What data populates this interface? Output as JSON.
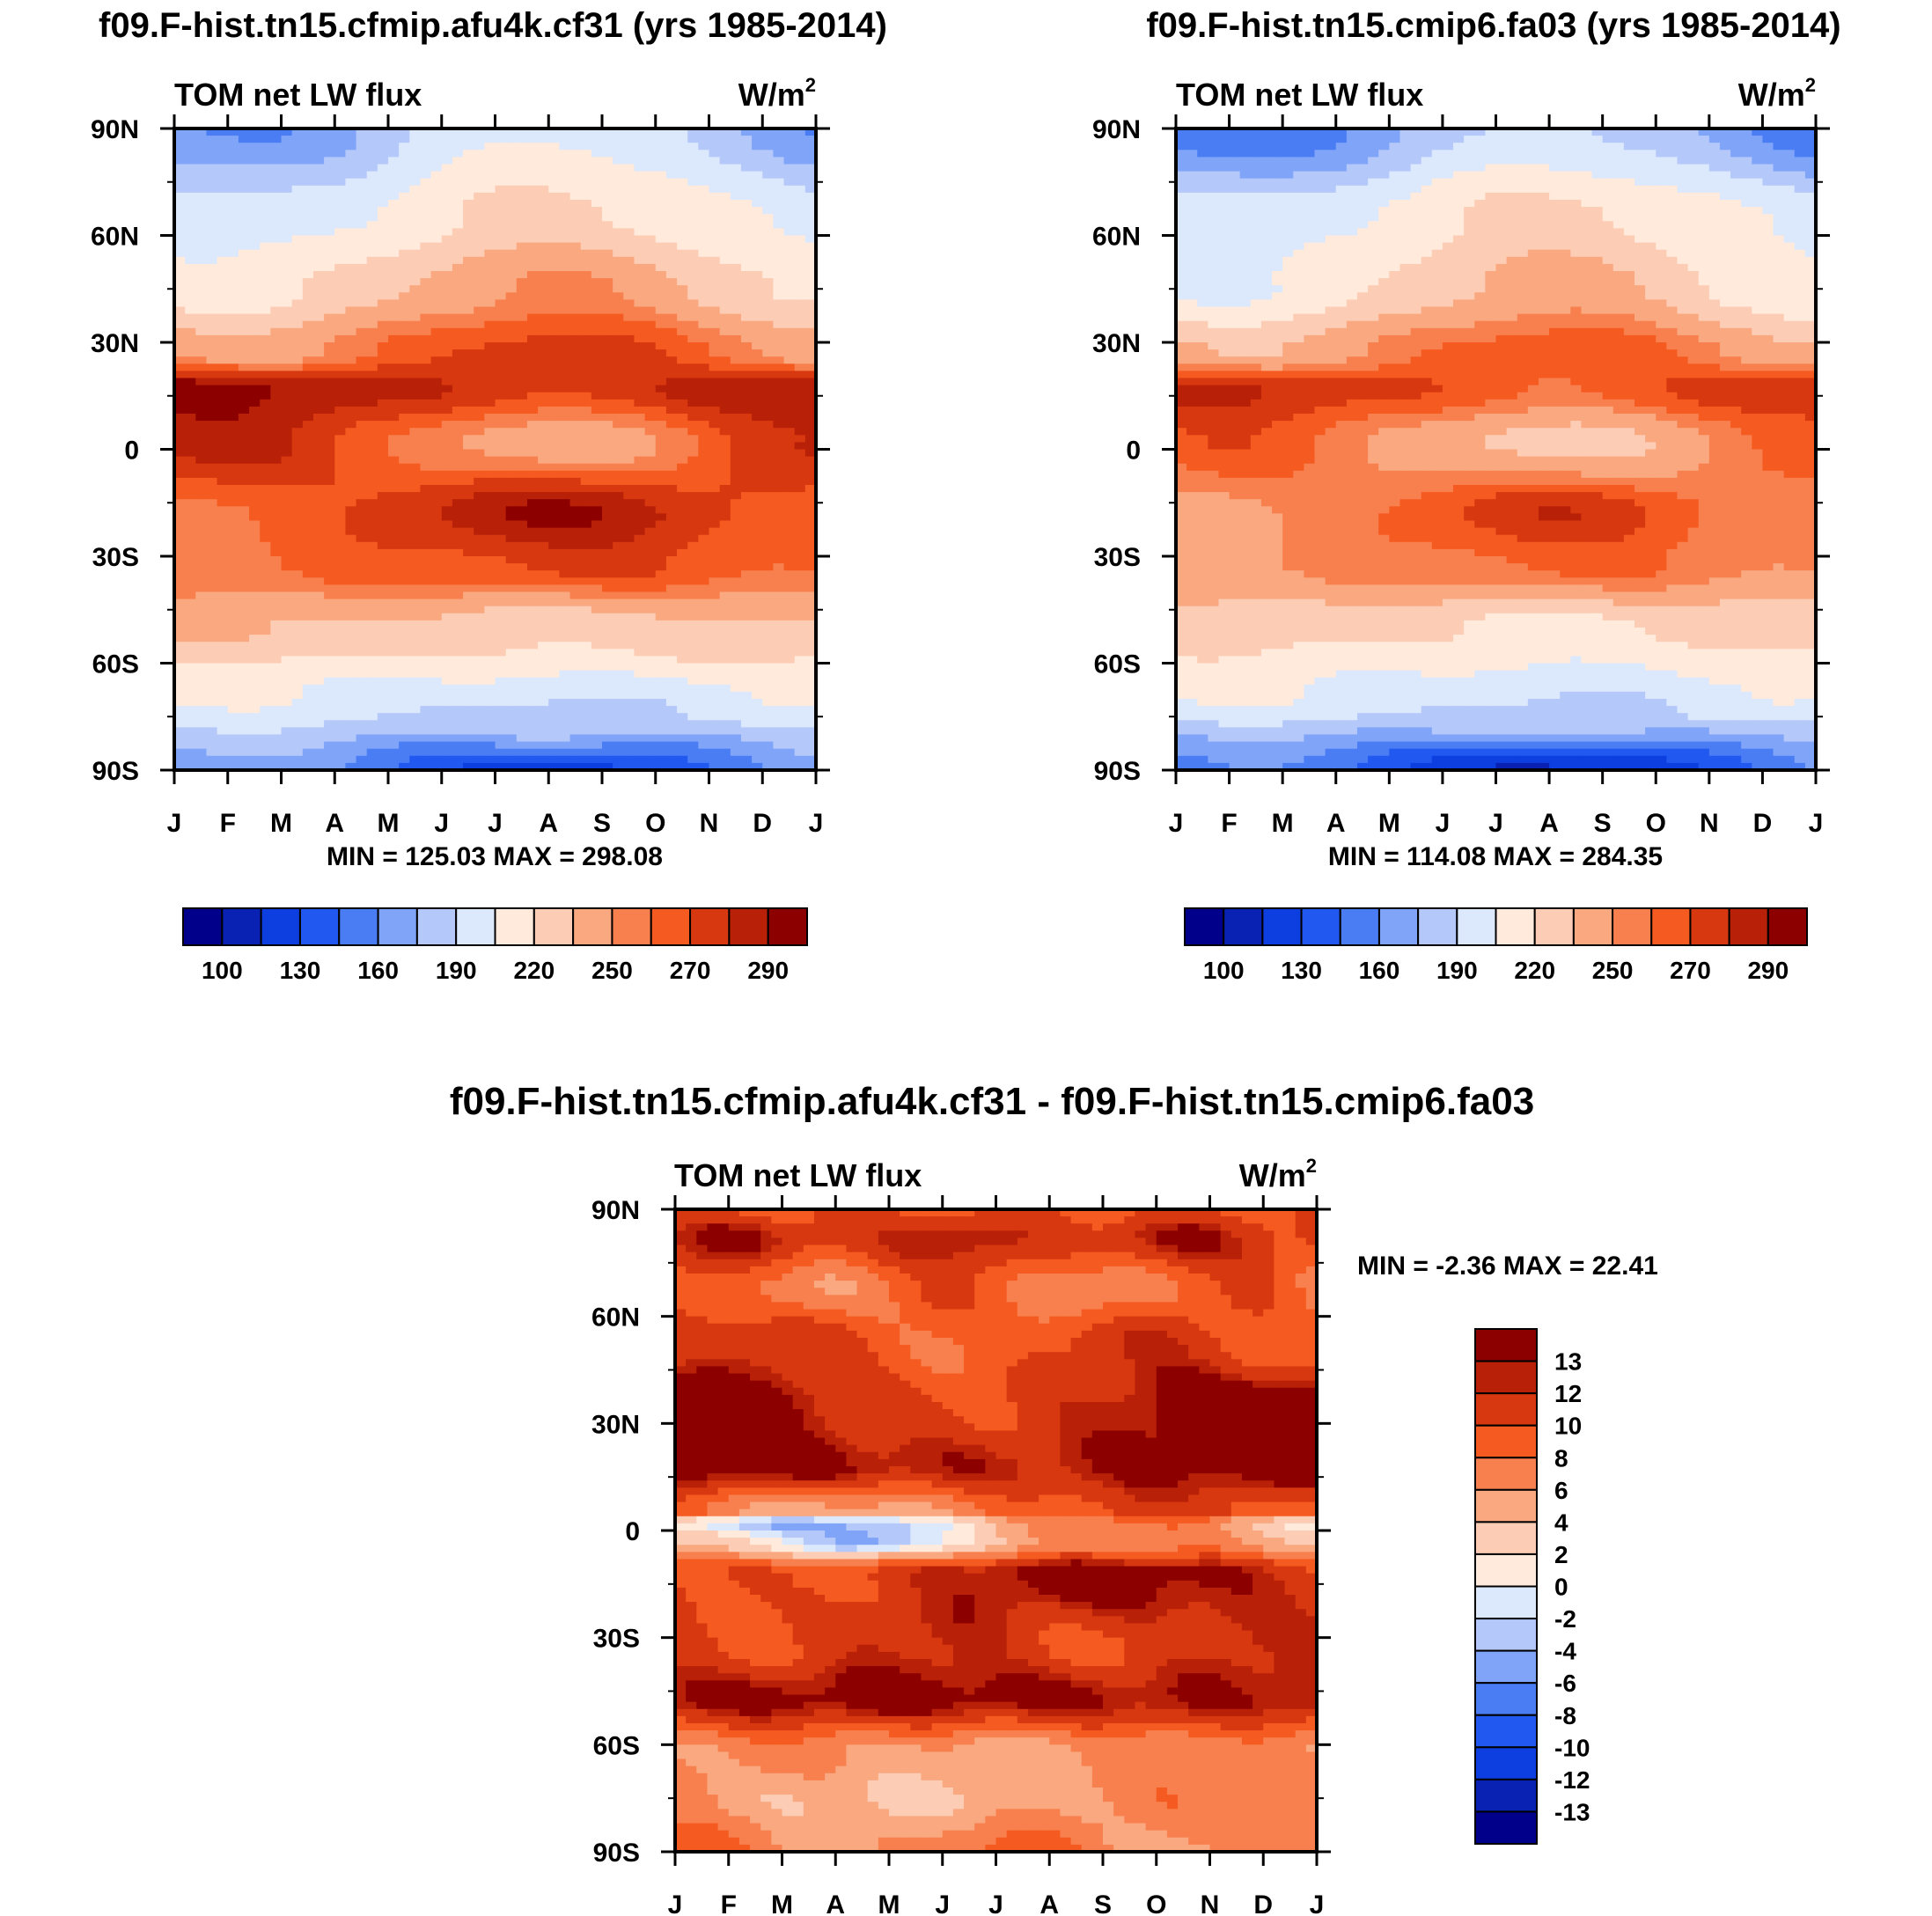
{
  "chart_data": [
    {
      "type": "heatmap",
      "title": "f09.F-hist.tn15.cfmip.afu4k.cf31 (yrs 1985-2014)",
      "left_string": "TOM net LW flux",
      "right_string": "W/m",
      "right_superscript": "2",
      "x_ticks": [
        "J",
        "F",
        "M",
        "A",
        "M",
        "J",
        "J",
        "A",
        "S",
        "O",
        "N",
        "D",
        "J"
      ],
      "y_ticks": [
        "90N",
        "60N",
        "30N",
        "0",
        "30S",
        "60S",
        "90S"
      ],
      "xlim": [
        0,
        12
      ],
      "ylim": [
        -90,
        90
      ],
      "stats_label": "MIN = 125.03 MAX = 298.08",
      "min": 125.03,
      "max": 298.08,
      "colorbar": {
        "orientation": "horizontal",
        "levels": [
          100,
          115,
          130,
          145,
          160,
          175,
          190,
          205,
          220,
          235,
          250,
          260,
          270,
          280,
          290
        ],
        "labels": [
          "100",
          "130",
          "160",
          "190",
          "220",
          "250",
          "270",
          "290"
        ],
        "colors": [
          "#00008b",
          "#0a22b3",
          "#0c3ee0",
          "#2058f0",
          "#4a7cf4",
          "#80a4f8",
          "#b4c8fa",
          "#dce8fc",
          "#ffeadc",
          "#fcccb4",
          "#f9a880",
          "#f8804e",
          "#f55a20",
          "#d83810",
          "#b82008",
          "#8c0000"
        ]
      },
      "field": {
        "equator_base": 262,
        "equator_amp": 22,
        "trop_n_base": 283,
        "trop_n_amp": 10,
        "trop_s_base": 275,
        "trop_s_amp": 16,
        "sub_n_base": 260,
        "sub_n_amp": 16,
        "sub_s_base": 266,
        "sub_s_amp": 10,
        "mid_n_base": 232,
        "mid_n_amp": 20,
        "mid_s_base": 232,
        "mid_s_amp": 6,
        "pole_n_base": 182,
        "pole_n_amp": 24,
        "pole_s_base": 148,
        "pole_s_amp": 25,
        "sub_s_lat_base": -72,
        "sub_s_lat_amp": 6
      }
    },
    {
      "type": "heatmap",
      "title": "f09.F-hist.tn15.cmip6.fa03 (yrs 1985-2014)",
      "left_string": "TOM net LW flux",
      "right_string": "W/m",
      "right_superscript": "2",
      "x_ticks": [
        "J",
        "F",
        "M",
        "A",
        "M",
        "J",
        "J",
        "A",
        "S",
        "O",
        "N",
        "D",
        "J"
      ],
      "y_ticks": [
        "90N",
        "60N",
        "30N",
        "0",
        "30S",
        "60S",
        "90S"
      ],
      "xlim": [
        0,
        12
      ],
      "ylim": [
        -90,
        90
      ],
      "stats_label": "MIN = 114.08 MAX = 284.35",
      "min": 114.08,
      "max": 284.35,
      "colorbar": {
        "orientation": "horizontal",
        "levels": [
          100,
          115,
          130,
          145,
          160,
          175,
          190,
          205,
          220,
          235,
          250,
          260,
          270,
          280,
          290
        ],
        "labels": [
          "100",
          "130",
          "160",
          "190",
          "220",
          "250",
          "270",
          "290"
        ],
        "colors": [
          "#00008b",
          "#0a22b3",
          "#0c3ee0",
          "#2058f0",
          "#4a7cf4",
          "#80a4f8",
          "#b4c8fa",
          "#dce8fc",
          "#ffeadc",
          "#fcccb4",
          "#f9a880",
          "#f8804e",
          "#f55a20",
          "#d83810",
          "#b82008",
          "#8c0000"
        ]
      },
      "field": {
        "equator_base": 248,
        "equator_amp": 20,
        "trop_n_base": 272,
        "trop_n_amp": 10,
        "trop_s_base": 262,
        "trop_s_amp": 16,
        "sub_n_base": 252,
        "sub_n_amp": 16,
        "sub_s_base": 256,
        "sub_s_amp": 10,
        "mid_n_base": 222,
        "mid_n_amp": 20,
        "mid_s_base": 222,
        "mid_s_amp": 6,
        "pole_n_base": 170,
        "pole_n_amp": 24,
        "pole_s_base": 136,
        "pole_s_amp": 25,
        "sub_s_lat_base": -72,
        "sub_s_lat_amp": 6
      }
    },
    {
      "type": "heatmap",
      "title": "f09.F-hist.tn15.cfmip.afu4k.cf31 - f09.F-hist.tn15.cmip6.fa03",
      "left_string": "TOM net LW flux",
      "right_string": "W/m",
      "right_superscript": "2",
      "x_ticks": [
        "J",
        "F",
        "M",
        "A",
        "M",
        "J",
        "J",
        "A",
        "S",
        "O",
        "N",
        "D",
        "J"
      ],
      "y_ticks": [
        "90N",
        "60N",
        "30N",
        "0",
        "30S",
        "60S",
        "90S"
      ],
      "xlim": [
        0,
        12
      ],
      "ylim": [
        -90,
        90
      ],
      "stats_label": "MIN =  -2.36 MAX =  22.41",
      "min": -2.36,
      "max": 22.41,
      "colorbar": {
        "orientation": "vertical",
        "levels": [
          -13,
          -12,
          -10,
          -8,
          -6,
          -4,
          -2,
          0,
          2,
          4,
          6,
          8,
          10,
          12,
          13
        ],
        "labels": [
          "13",
          "12",
          "10",
          "8",
          "6",
          "4",
          "2",
          "0",
          "-2",
          "-4",
          "-6",
          "-8",
          "-10",
          "-12",
          "-13"
        ],
        "colors": [
          "#00008b",
          "#0a22b3",
          "#0c3ee0",
          "#2058f0",
          "#4a7cf4",
          "#80a4f8",
          "#b4c8fa",
          "#dce8fc",
          "#ffeadc",
          "#fcccb4",
          "#f9a880",
          "#f8804e",
          "#f55a20",
          "#d83810",
          "#b82008",
          "#8c0000"
        ]
      }
    }
  ]
}
